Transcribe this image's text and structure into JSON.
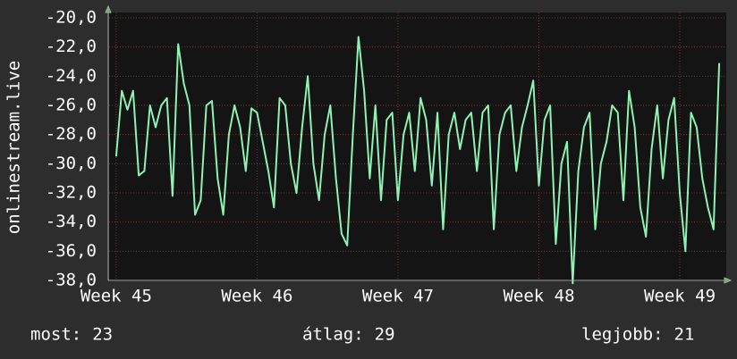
{
  "chart_data": {
    "type": "line",
    "y_label": "onlinestream.live",
    "x": [
      45,
      45.04,
      45.08,
      45.12,
      45.16,
      45.2,
      45.24,
      45.28,
      45.32,
      45.36,
      45.4,
      45.44,
      45.48,
      45.52,
      45.56,
      45.6,
      45.64,
      45.68,
      45.72,
      45.76,
      45.8,
      45.84,
      45.88,
      45.92,
      45.96,
      46,
      46.04,
      46.08,
      46.12,
      46.16,
      46.2,
      46.24,
      46.28,
      46.32,
      46.36,
      46.4,
      46.44,
      46.48,
      46.52,
      46.56,
      46.6,
      46.64,
      46.68,
      46.72,
      46.76,
      46.8,
      46.84,
      46.88,
      46.92,
      46.96,
      47,
      47.04,
      47.08,
      47.12,
      47.16,
      47.2,
      47.24,
      47.28,
      47.32,
      47.36,
      47.4,
      47.44,
      47.48,
      47.52,
      47.56,
      47.6,
      47.64,
      47.68,
      47.72,
      47.76,
      47.8,
      47.84,
      47.88,
      47.92,
      47.96,
      48,
      48.04,
      48.08,
      48.12,
      48.16,
      48.2,
      48.24,
      48.28,
      48.32,
      48.36,
      48.4,
      48.44,
      48.48,
      48.52,
      48.56,
      48.6,
      48.64,
      48.68,
      48.72,
      48.76,
      48.8,
      48.84,
      48.88,
      48.92,
      48.96,
      49,
      49.04,
      49.08,
      49.12,
      49.16,
      49.2,
      49.24,
      49.28
    ],
    "series": [
      {
        "color": "#8ef2b4",
        "values": [
          -29.5,
          -25.0,
          -26.3,
          -25.0,
          -30.8,
          -30.5,
          -26.0,
          -27.5,
          -26.0,
          -25.5,
          -32.2,
          -21.8,
          -24.5,
          -26.0,
          -33.5,
          -32.5,
          -26.0,
          -25.7,
          -31.0,
          -33.5,
          -28.0,
          -26.0,
          -27.5,
          -30.5,
          -26.2,
          -26.5,
          -28.5,
          -30.5,
          -33.0,
          -25.5,
          -26.0,
          -30.0,
          -32.0,
          -27.5,
          -24.0,
          -30.0,
          -32.5,
          -28.0,
          -26.0,
          -31.0,
          -34.8,
          -35.6,
          -28.0,
          -21.3,
          -25.0,
          -31.0,
          -26.0,
          -32.5,
          -27.0,
          -26.5,
          -32.5,
          -28.0,
          -26.5,
          -30.5,
          -25.5,
          -27.0,
          -31.5,
          -26.5,
          -34.5,
          -28.0,
          -26.5,
          -29.0,
          -27.0,
          -26.5,
          -30.5,
          -26.5,
          -26.0,
          -34.5,
          -28.0,
          -26.5,
          -26.0,
          -30.5,
          -27.5,
          -26.0,
          -24.3,
          -31.5,
          -27.0,
          -26.0,
          -35.5,
          -30.0,
          -28.5,
          -38.2,
          -30.5,
          -27.5,
          -26.5,
          -34.5,
          -30.0,
          -28.5,
          -26.0,
          -26.5,
          -32.5,
          -25.0,
          -27.5,
          -33.0,
          -35.0,
          -29.0,
          -26.0,
          -31.0,
          -27.0,
          -25.5,
          -32.0,
          -36.0,
          -26.5,
          -27.5,
          -31.0,
          -33.0,
          -34.5,
          -23.1
        ]
      }
    ],
    "xlim": [
      44.95,
      49.33
    ],
    "xticks": [
      {
        "value": 45,
        "label": "Week 45"
      },
      {
        "value": 46,
        "label": "Week 46"
      },
      {
        "value": 47,
        "label": "Week 47"
      },
      {
        "value": 48,
        "label": "Week 48"
      },
      {
        "value": 49,
        "label": "Week 49"
      }
    ],
    "ylim": [
      -38,
      -20
    ],
    "yticks": [
      {
        "value": -38,
        "label": "-38,0"
      },
      {
        "value": -36,
        "label": "-36,0"
      },
      {
        "value": -34,
        "label": "-34,0"
      },
      {
        "value": -32,
        "label": "-32,0"
      },
      {
        "value": -30,
        "label": "-30,0"
      },
      {
        "value": -28,
        "label": "-28,0"
      },
      {
        "value": -26,
        "label": "-26,0"
      },
      {
        "value": -24,
        "label": "-24,0"
      },
      {
        "value": -22,
        "label": "-22,0"
      },
      {
        "value": -20,
        "label": "-20,0"
      }
    ],
    "grid": true,
    "stats": [
      {
        "label": "most:",
        "value": 23
      },
      {
        "label": "átlag:",
        "value": 29
      },
      {
        "label": "legjobb:",
        "value": 21
      }
    ]
  }
}
